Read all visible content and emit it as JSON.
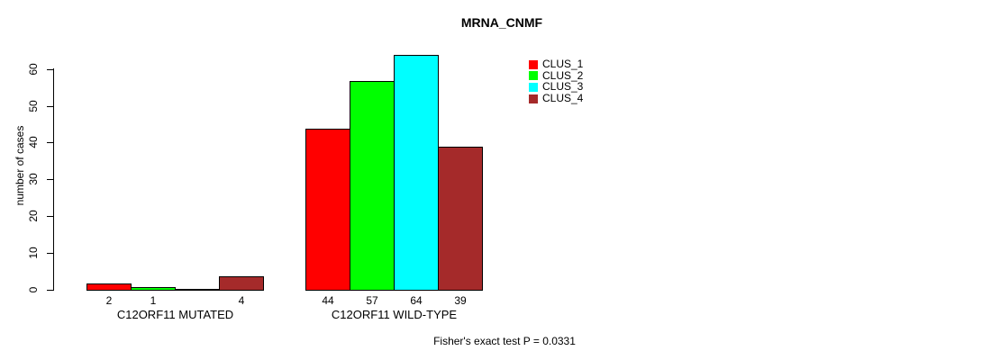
{
  "chart_data": {
    "type": "bar",
    "title": "MRNA_CNMF",
    "ylabel": "number of cases",
    "xlabel": "",
    "ylim": [
      0,
      60
    ],
    "yticks": [
      0,
      10,
      20,
      30,
      40,
      50,
      60
    ],
    "grid": false,
    "legend_position": "top-right",
    "categories": [
      "C12ORF11 MUTATED",
      "C12ORF11 WILD-TYPE"
    ],
    "series": [
      {
        "name": "CLUS_1",
        "color": "#ff0000",
        "values": [
          2,
          44
        ]
      },
      {
        "name": "CLUS_2",
        "color": "#00ff00",
        "values": [
          1,
          57
        ]
      },
      {
        "name": "CLUS_3",
        "color": "#00ffff",
        "values": [
          0,
          64
        ]
      },
      {
        "name": "CLUS_4",
        "color": "#a52a2a",
        "values": [
          4,
          39
        ]
      }
    ],
    "bar_labels": [
      [
        "2",
        "1",
        "",
        "4"
      ],
      [
        "44",
        "57",
        "64",
        "39"
      ]
    ],
    "annotation": "Fisher's exact test P = 0.0331"
  }
}
